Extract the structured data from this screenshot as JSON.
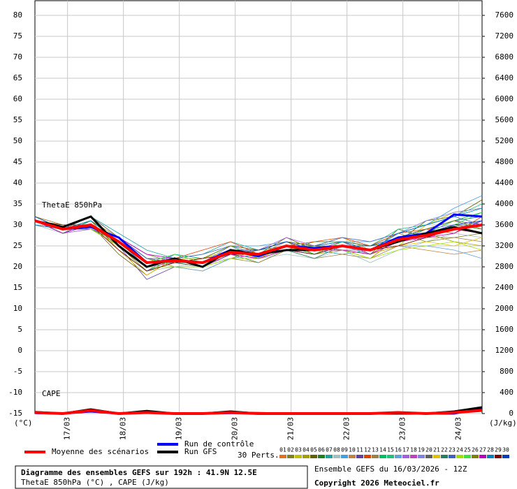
{
  "chart_data": {
    "type": "line",
    "title": "Diagramme des ensembles GEFS sur 192h : 41.9N 12.5E",
    "subtitle": "ThetaE 850hPa (°C) , CAPE (J/kg)",
    "run_info": "Ensemble GEFS du 16/03/2026 - 12Z",
    "copyright": "Copyright 2026 Meteociel.fr",
    "y_label": "(°C)",
    "y2_label": "(J/kg)",
    "annotations": [
      "ThetaE 850hPa",
      "CAPE"
    ],
    "perturbations_label": "30 Perts.",
    "grid": true,
    "x": [
      0,
      12,
      24,
      36,
      48,
      60,
      72,
      84,
      96,
      108,
      120,
      132,
      144,
      156,
      168,
      180,
      192
    ],
    "xlim": [
      0,
      192
    ],
    "xticks": [
      {
        "value": 14,
        "label": "17/03"
      },
      {
        "value": 38,
        "label": "18/03"
      },
      {
        "value": 62,
        "label": "19/03"
      },
      {
        "value": 86,
        "label": "20/03"
      },
      {
        "value": 110,
        "label": "21/03"
      },
      {
        "value": 134,
        "label": "22/03"
      },
      {
        "value": 158,
        "label": "23/03"
      },
      {
        "value": 182,
        "label": "24/03"
      }
    ],
    "ylim": [
      -15,
      83.5
    ],
    "yticks": [
      -15,
      -10,
      -5,
      0,
      5,
      10,
      15,
      20,
      25,
      30,
      35,
      40,
      45,
      50,
      55,
      60,
      65,
      70,
      75,
      80
    ],
    "y2lim": [
      0,
      7880
    ],
    "y2ticks": [
      0,
      400,
      800,
      1200,
      1600,
      2000,
      2400,
      2800,
      3200,
      3600,
      4000,
      4400,
      4800,
      5200,
      5600,
      6000,
      6400,
      6800,
      7200,
      7600
    ],
    "series": [
      {
        "name": "01",
        "color": "#e07020",
        "values": [
          31,
          29,
          31,
          24,
          19,
          22,
          20,
          24,
          22,
          25,
          25,
          24,
          23,
          27,
          29,
          31,
          33
        ]
      },
      {
        "name": "02",
        "color": "#808020",
        "values": [
          32,
          30,
          29,
          27,
          23,
          21,
          22,
          25,
          24,
          26,
          23,
          26,
          25,
          28,
          26,
          27,
          28
        ]
      },
      {
        "name": "03",
        "color": "#c0c000",
        "values": [
          31,
          28,
          30,
          25,
          20,
          23,
          21,
          23,
          22,
          24,
          25,
          27,
          24,
          25,
          30,
          33,
          34
        ]
      },
      {
        "name": "04",
        "color": "#a0a000",
        "values": [
          30,
          29,
          31,
          27,
          22,
          20,
          19,
          22,
          24,
          25,
          23,
          24,
          22,
          27,
          28,
          26,
          25
        ]
      },
      {
        "name": "05",
        "color": "#606000",
        "values": [
          31,
          30,
          30,
          23,
          18,
          22,
          22,
          24,
          23,
          27,
          24,
          25,
          25,
          26,
          31,
          32,
          36
        ]
      },
      {
        "name": "06",
        "color": "#208020",
        "values": [
          32,
          29,
          29,
          26,
          21,
          21,
          20,
          23,
          21,
          24,
          26,
          26,
          23,
          29,
          27,
          30,
          29
        ]
      },
      {
        "name": "07",
        "color": "#20a0a0",
        "values": [
          31,
          29,
          32,
          28,
          24,
          22,
          23,
          26,
          24,
          25,
          24,
          23,
          24,
          26,
          28,
          29,
          31
        ]
      },
      {
        "name": "08",
        "color": "#a0c0c0",
        "values": [
          30,
          28,
          30,
          24,
          19,
          20,
          21,
          22,
          22,
          23,
          22,
          24,
          21,
          24,
          26,
          28,
          27
        ]
      },
      {
        "name": "09",
        "color": "#40a0e0",
        "values": [
          31,
          29,
          31,
          26,
          20,
          23,
          22,
          25,
          25,
          26,
          25,
          26,
          26,
          28,
          30,
          34,
          37
        ]
      },
      {
        "name": "10",
        "color": "#c08040",
        "values": [
          32,
          30,
          30,
          27,
          22,
          21,
          21,
          24,
          23,
          26,
          24,
          25,
          23,
          25,
          24,
          23,
          24
        ]
      },
      {
        "name": "11",
        "color": "#6040a0",
        "values": [
          31,
          29,
          29,
          25,
          17,
          20,
          20,
          23,
          22,
          24,
          23,
          25,
          24,
          27,
          29,
          31,
          30
        ]
      },
      {
        "name": "12",
        "color": "#e04000",
        "values": [
          31,
          28,
          31,
          26,
          21,
          22,
          24,
          26,
          23,
          25,
          26,
          27,
          25,
          28,
          29,
          28,
          32
        ]
      },
      {
        "name": "13",
        "color": "#a08040",
        "values": [
          30,
          29,
          30,
          27,
          22,
          21,
          20,
          22,
          21,
          24,
          22,
          23,
          22,
          25,
          27,
          27,
          26
        ]
      },
      {
        "name": "14",
        "color": "#00c060",
        "values": [
          31,
          30,
          30,
          24,
          19,
          22,
          21,
          24,
          24,
          26,
          25,
          24,
          24,
          26,
          28,
          31,
          33
        ]
      },
      {
        "name": "15",
        "color": "#20c080",
        "values": [
          32,
          29,
          31,
          26,
          21,
          23,
          22,
          25,
          22,
          25,
          24,
          26,
          25,
          29,
          30,
          32,
          35
        ]
      },
      {
        "name": "16",
        "color": "#60a0e0",
        "values": [
          31,
          29,
          30,
          25,
          20,
          20,
          19,
          22,
          23,
          24,
          23,
          25,
          23,
          25,
          25,
          24,
          22
        ]
      },
      {
        "name": "17",
        "color": "#a060e0",
        "values": [
          31,
          28,
          29,
          27,
          23,
          22,
          21,
          24,
          24,
          27,
          25,
          24,
          24,
          27,
          29,
          30,
          31
        ]
      },
      {
        "name": "18",
        "color": "#c040c0",
        "values": [
          30,
          29,
          31,
          26,
          20,
          21,
          22,
          23,
          22,
          25,
          24,
          26,
          23,
          26,
          27,
          29,
          28
        ]
      },
      {
        "name": "19",
        "color": "#8080e0",
        "values": [
          31,
          30,
          30,
          25,
          19,
          23,
          21,
          25,
          23,
          24,
          23,
          25,
          24,
          28,
          31,
          33,
          34
        ]
      },
      {
        "name": "20",
        "color": "#606060",
        "values": [
          32,
          29,
          32,
          27,
          22,
          21,
          20,
          23,
          24,
          26,
          25,
          26,
          25,
          26,
          28,
          30,
          30
        ]
      },
      {
        "name": "21",
        "color": "#e0c000",
        "values": [
          31,
          29,
          30,
          24,
          18,
          22,
          22,
          24,
          22,
          25,
          24,
          24,
          23,
          25,
          26,
          25,
          27
        ]
      },
      {
        "name": "22",
        "color": "#208060",
        "values": [
          31,
          28,
          31,
          26,
          21,
          21,
          21,
          23,
          23,
          24,
          22,
          25,
          24,
          27,
          29,
          31,
          32
        ]
      },
      {
        "name": "23",
        "color": "#4060c0",
        "values": [
          30,
          29,
          30,
          27,
          22,
          22,
          23,
          25,
          24,
          26,
          25,
          27,
          26,
          28,
          30,
          32,
          30
        ]
      },
      {
        "name": "24",
        "color": "#a0e000",
        "values": [
          31,
          30,
          29,
          25,
          20,
          20,
          20,
          22,
          22,
          24,
          24,
          24,
          22,
          24,
          25,
          26,
          24
        ]
      },
      {
        "name": "25",
        "color": "#40e040",
        "values": [
          32,
          29,
          31,
          26,
          21,
          23,
          21,
          24,
          23,
          25,
          23,
          26,
          24,
          27,
          28,
          30,
          33
        ]
      },
      {
        "name": "26",
        "color": "#808000",
        "values": [
          31,
          29,
          30,
          25,
          19,
          21,
          22,
          25,
          24,
          26,
          25,
          25,
          25,
          26,
          29,
          31,
          29
        ]
      },
      {
        "name": "27",
        "color": "#c000c0",
        "values": [
          31,
          28,
          30,
          27,
          23,
          22,
          20,
          23,
          22,
          24,
          24,
          24,
          23,
          26,
          27,
          28,
          31
        ]
      },
      {
        "name": "28",
        "color": "#0080c0",
        "values": [
          30,
          29,
          31,
          26,
          20,
          22,
          21,
          24,
          23,
          25,
          25,
          26,
          24,
          28,
          30,
          32,
          34
        ]
      },
      {
        "name": "29",
        "color": "#800000",
        "values": [
          31,
          30,
          30,
          24,
          19,
          21,
          22,
          23,
          23,
          24,
          23,
          25,
          24,
          25,
          27,
          29,
          28
        ]
      },
      {
        "name": "30",
        "color": "#0040c0",
        "values": [
          32,
          29,
          30,
          26,
          21,
          22,
          21,
          24,
          24,
          26,
          24,
          25,
          25,
          27,
          28,
          30,
          31
        ]
      },
      {
        "name": "Run de contrôle",
        "color": "#0000ff",
        "values": [
          31,
          29,
          29.5,
          27,
          21,
          21.5,
          21,
          24,
          22.5,
          25,
          24.5,
          25,
          24,
          27,
          28,
          32.5,
          32
        ]
      },
      {
        "name": "Run GFS",
        "color": "#000000",
        "values": [
          31,
          29.5,
          32,
          25,
          20,
          22,
          20,
          24,
          23,
          24,
          24,
          25,
          24,
          26,
          28,
          29.5,
          28
        ]
      },
      {
        "name": "Moyenne des scénarios",
        "color": "#ff0000",
        "values": [
          31,
          29,
          30,
          26,
          21,
          21.5,
          21,
          23.5,
          23,
          25,
          24,
          25,
          24,
          26.5,
          27.5,
          29,
          30
        ]
      },
      {
        "name": "Run de contrôle",
        "color": "#0000ff",
        "axis": "y2",
        "values": [
          10,
          0,
          40,
          0,
          30,
          0,
          0,
          10,
          10,
          0,
          0,
          0,
          0,
          10,
          0,
          0,
          100
        ]
      },
      {
        "name": "Run GFS",
        "color": "#000000",
        "axis": "y2",
        "values": [
          30,
          0,
          80,
          0,
          50,
          0,
          0,
          40,
          0,
          0,
          0,
          0,
          0,
          0,
          0,
          40,
          120
        ]
      },
      {
        "name": "Moyenne des scénarios",
        "color": "#ff0000",
        "axis": "y2",
        "values": [
          20,
          0,
          60,
          0,
          20,
          0,
          0,
          20,
          0,
          0,
          0,
          0,
          0,
          20,
          0,
          20,
          60
        ]
      }
    ]
  }
}
